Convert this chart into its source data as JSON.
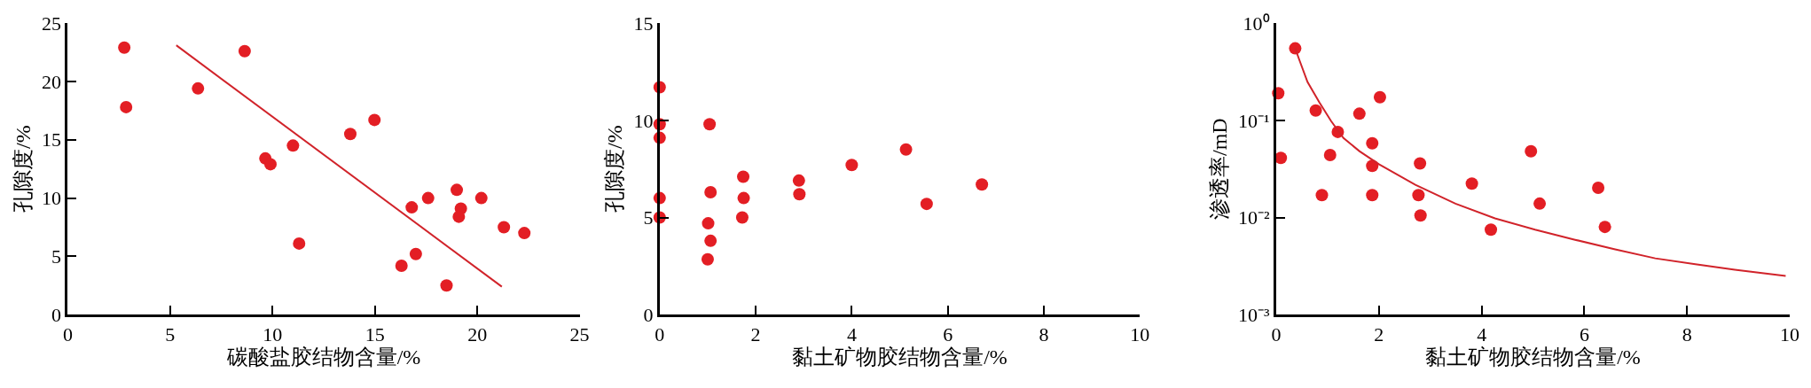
{
  "chart_data": [
    {
      "type": "scatter",
      "xlabel": "碳酸盐胶结物含量/%",
      "ylabel": "孔隙度/%",
      "xlim": [
        0,
        25
      ],
      "xticks": [
        0,
        5,
        10,
        15,
        20,
        25
      ],
      "ylim": [
        0,
        25
      ],
      "yticks": [
        0,
        5,
        10,
        15,
        20,
        25
      ],
      "series": [
        {
          "marker": "circle",
          "color": "#e31e24",
          "x": [
            2.76,
            2.85,
            8.64,
            6.36,
            14.98,
            13.8,
            11.0,
            9.65,
            9.9,
            11.3,
            16.8,
            17.6,
            19.0,
            20.2,
            19.2,
            19.1,
            21.3,
            22.3,
            17.0,
            16.3,
            18.5
          ],
          "values": [
            22.9,
            17.8,
            22.6,
            19.4,
            16.7,
            15.5,
            14.5,
            13.4,
            12.9,
            6.1,
            9.2,
            10.0,
            10.7,
            10.0,
            9.1,
            8.4,
            7.5,
            7.0,
            5.2,
            4.2,
            2.5
          ]
        },
        {
          "type": "line",
          "color": "#d1232a",
          "x": [
            5.3,
            21.2
          ],
          "values": [
            23.1,
            2.4
          ]
        }
      ]
    },
    {
      "type": "scatter",
      "xlabel": "黏土矿物胶结物含量/%",
      "ylabel": "孔隙度/%",
      "xlim": [
        0,
        10
      ],
      "xticks": [
        0,
        2,
        4,
        6,
        8,
        10
      ],
      "ylim": [
        0,
        15
      ],
      "yticks": [
        0,
        5,
        10,
        15
      ],
      "series": [
        {
          "marker": "circle",
          "color": "#e31e24",
          "x": [
            0,
            0,
            0,
            0,
            0,
            1.04,
            1.06,
            1.01,
            1.06,
            1.0,
            1.74,
            1.75,
            1.72,
            2.9,
            2.91,
            4.0,
            5.13,
            5.56,
            6.71
          ],
          "values": [
            11.7,
            9.8,
            9.1,
            6.0,
            5.0,
            9.8,
            6.3,
            4.7,
            3.8,
            2.85,
            7.1,
            6.0,
            5.0,
            6.9,
            6.2,
            7.7,
            8.5,
            5.7,
            6.7
          ]
        }
      ]
    },
    {
      "type": "scatter",
      "xlabel": "黏土矿物胶结物含量/%",
      "ylabel": "渗透率/mD",
      "xlim": [
        0,
        10
      ],
      "xticks": [
        0,
        2,
        4,
        6,
        8,
        10
      ],
      "ylim": [
        0.001,
        1
      ],
      "yticks": [
        {
          "value": 0.001,
          "label": "10⁻³"
        },
        {
          "value": 0.01,
          "label": "10⁻²"
        },
        {
          "value": 0.1,
          "label": "10⁻¹"
        },
        {
          "value": 1,
          "label": "10⁰"
        }
      ],
      "log": "y",
      "series": [
        {
          "marker": "circle",
          "color": "#e31e24",
          "x": [
            0.37,
            0.04,
            0.09,
            0.77,
            1.2,
            1.05,
            0.89,
            1.62,
            2.02,
            1.87,
            1.87,
            1.87,
            2.8,
            2.77,
            2.81,
            3.81,
            4.18,
            4.96,
            5.13,
            6.27,
            6.4
          ],
          "values": [
            0.55,
            0.19,
            0.041,
            0.126,
            0.076,
            0.044,
            0.017,
            0.117,
            0.173,
            0.058,
            0.034,
            0.017,
            0.036,
            0.017,
            0.0105,
            0.0223,
            0.0075,
            0.048,
            0.0139,
            0.0202,
            0.008
          ]
        },
        {
          "type": "line",
          "color": "#d1232a",
          "x": [
            0.37,
            0.45,
            0.61,
            0.84,
            1.07,
            1.31,
            1.62,
            2.0,
            2.71,
            3.49,
            4.26,
            5.04,
            5.82,
            6.6,
            7.38,
            8.16,
            8.93,
            9.92
          ],
          "values": [
            0.55,
            0.42,
            0.248,
            0.153,
            0.098,
            0.0658,
            0.0482,
            0.0353,
            0.0217,
            0.0139,
            0.0098,
            0.0075,
            0.0059,
            0.0047,
            0.0038,
            0.0033,
            0.0029,
            0.0025
          ]
        }
      ]
    }
  ]
}
